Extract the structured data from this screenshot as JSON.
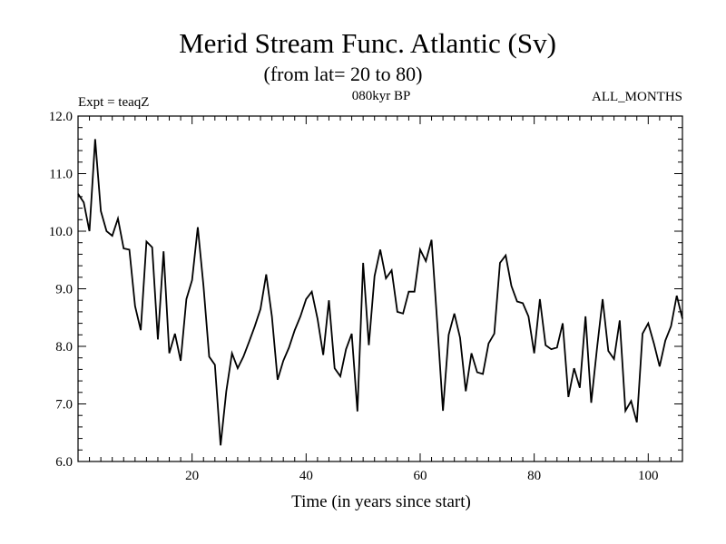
{
  "chart_data": {
    "type": "line",
    "title": "Merid Stream Func. Atlantic (Sv)",
    "subtitle": "(from lat= 20 to 80)",
    "left_annotation": "Expt = teaqZ",
    "center_annotation": "080kyr BP",
    "right_annotation": "ALL_MONTHS",
    "xlabel": "Time (in years since start)",
    "ylabel": "",
    "xlim": [
      0,
      106
    ],
    "ylim": [
      6.0,
      12.0
    ],
    "xticks": [
      20,
      40,
      60,
      80,
      100
    ],
    "xtick_labels": [
      "20",
      "40",
      "60",
      "80",
      "100"
    ],
    "yticks": [
      6.0,
      7.0,
      8.0,
      9.0,
      10.0,
      11.0,
      12.0
    ],
    "ytick_labels": [
      "6.0",
      "7.0",
      "8.0",
      "9.0",
      "10.0",
      "11.0",
      "12.0"
    ],
    "series": [
      {
        "name": "Merid Stream Func. Atlantic",
        "color": "#000000",
        "x": [
          0,
          1,
          2,
          3,
          4,
          5,
          6,
          7,
          8,
          9,
          10,
          11,
          12,
          13,
          14,
          15,
          16,
          17,
          18,
          19,
          20,
          21,
          22,
          23,
          24,
          25,
          26,
          27,
          28,
          29,
          30,
          31,
          32,
          33,
          34,
          35,
          36,
          37,
          38,
          39,
          40,
          41,
          42,
          43,
          44,
          45,
          46,
          47,
          48,
          49,
          50,
          51,
          52,
          53,
          54,
          55,
          56,
          57,
          58,
          59,
          60,
          61,
          62,
          63,
          64,
          65,
          66,
          67,
          68,
          69,
          70,
          71,
          72,
          73,
          74,
          75,
          76,
          77,
          78,
          79,
          80,
          81,
          82,
          83,
          84,
          85,
          86,
          87,
          88,
          89,
          90,
          91,
          92,
          93,
          94,
          95,
          96,
          97,
          98,
          99,
          100,
          101,
          102,
          103,
          104,
          105,
          106
        ],
        "values": [
          10.65,
          10.5,
          10.0,
          11.6,
          10.35,
          10.0,
          9.92,
          10.22,
          9.7,
          9.68,
          8.7,
          8.28,
          9.82,
          9.72,
          8.12,
          9.65,
          7.88,
          8.22,
          7.75,
          8.82,
          9.15,
          10.07,
          9.05,
          7.82,
          7.68,
          6.28,
          7.22,
          7.88,
          7.62,
          7.82,
          8.08,
          8.35,
          8.65,
          9.25,
          8.52,
          7.42,
          7.75,
          7.98,
          8.28,
          8.52,
          8.82,
          8.95,
          8.48,
          7.85,
          8.8,
          7.62,
          7.48,
          7.95,
          8.22,
          6.87,
          9.45,
          8.02,
          9.22,
          9.68,
          9.18,
          9.32,
          8.6,
          8.57,
          8.95,
          8.95,
          9.68,
          9.48,
          9.85,
          8.4,
          6.88,
          8.2,
          8.57,
          8.15,
          7.22,
          7.88,
          7.55,
          7.52,
          8.05,
          8.22,
          9.45,
          9.58,
          9.05,
          8.78,
          8.75,
          8.52,
          7.88,
          8.82,
          8.02,
          7.95,
          7.98,
          8.4,
          7.12,
          7.62,
          7.28,
          8.52,
          7.02,
          7.95,
          8.82,
          7.92,
          7.78,
          8.45,
          6.88,
          7.05,
          6.68,
          8.22,
          8.4,
          8.05,
          7.65,
          8.1,
          8.35,
          8.88,
          8.48
        ]
      }
    ]
  }
}
